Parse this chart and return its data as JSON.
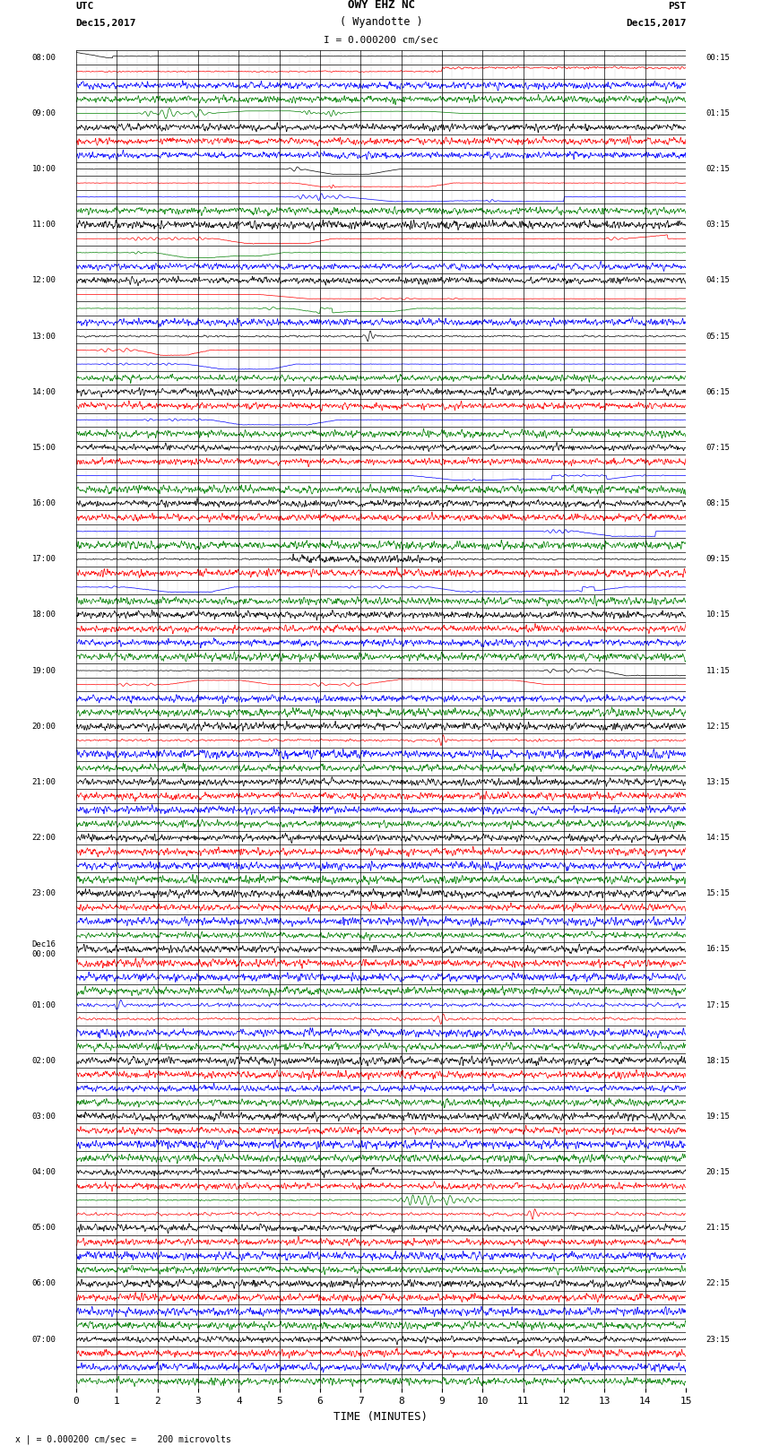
{
  "title_line1": "OWY EHZ NC",
  "title_line2": "( Wyandotte )",
  "scale_label": "I = 0.000200 cm/sec",
  "left_header_line1": "UTC",
  "left_header_line2": "Dec15,2017",
  "right_header_line1": "PST",
  "right_header_line2": "Dec15,2017",
  "bottom_label": "TIME (MINUTES)",
  "bottom_note": "x | = 0.000200 cm/sec =    200 microvolts",
  "utc_labels": [
    "08:00",
    "09:00",
    "10:00",
    "11:00",
    "12:00",
    "13:00",
    "14:00",
    "15:00",
    "16:00",
    "17:00",
    "18:00",
    "19:00",
    "20:00",
    "21:00",
    "22:00",
    "23:00",
    "Dec16\n00:00",
    "01:00",
    "02:00",
    "03:00",
    "04:00",
    "05:00",
    "06:00",
    "07:00"
  ],
  "pst_labels": [
    "00:15",
    "01:15",
    "02:15",
    "03:15",
    "04:15",
    "05:15",
    "06:15",
    "07:15",
    "08:15",
    "09:15",
    "10:15",
    "11:15",
    "12:15",
    "13:15",
    "14:15",
    "15:15",
    "16:15",
    "17:15",
    "18:15",
    "19:15",
    "20:15",
    "21:15",
    "22:15",
    "23:15"
  ],
  "n_hours": 24,
  "n_subrows": 4,
  "n_minutes": 15,
  "bg_color": "#ffffff",
  "figsize": [
    8.5,
    16.13
  ],
  "dpi": 100
}
